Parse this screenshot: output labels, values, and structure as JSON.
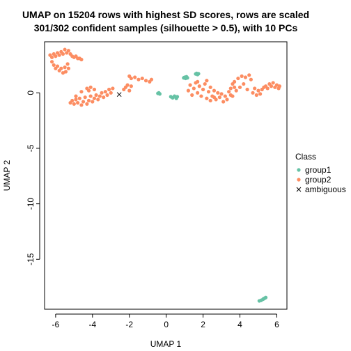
{
  "chart_data": {
    "type": "scatter",
    "title_line1": "UMAP on 15204 rows with highest SD scores, rows are scaled",
    "title_line2": "301/302 confident samples (silhouette > 0.5), with 10 PCs",
    "xlabel": "UMAP 1",
    "ylabel": "UMAP 2",
    "xlim": [
      -6.6,
      6.55
    ],
    "ylim": [
      -19.5,
      4.6
    ],
    "xticks": [
      -6,
      -4,
      -2,
      0,
      2,
      4,
      6
    ],
    "yticks": [
      0,
      -5,
      -10,
      -15
    ],
    "grid": false,
    "legend": {
      "title": "Class",
      "position": "right",
      "items": [
        {
          "label": "group1",
          "color": "#66C2A5",
          "symbol": "point"
        },
        {
          "label": "group2",
          "color": "#FC8D62",
          "symbol": "point"
        },
        {
          "label": "ambiguous",
          "color": "#000000",
          "symbol": "cross"
        }
      ]
    },
    "series": [
      {
        "name": "group1",
        "color": "#66C2A5",
        "points": [
          [
            -0.45,
            -0.05
          ],
          [
            -0.4,
            0.0
          ],
          [
            -0.35,
            -0.1
          ],
          [
            0.25,
            -0.35
          ],
          [
            0.35,
            -0.45
          ],
          [
            0.45,
            -0.3
          ],
          [
            0.55,
            -0.5
          ],
          [
            0.6,
            -0.35
          ],
          [
            0.95,
            1.35
          ],
          [
            1.0,
            1.4
          ],
          [
            1.05,
            1.3
          ],
          [
            1.1,
            1.45
          ],
          [
            1.15,
            1.35
          ],
          [
            1.6,
            1.7
          ],
          [
            1.65,
            1.75
          ],
          [
            1.7,
            1.65
          ],
          [
            1.75,
            1.72
          ],
          [
            5.05,
            -18.75
          ],
          [
            5.15,
            -18.7
          ],
          [
            5.25,
            -18.6
          ],
          [
            5.3,
            -18.55
          ],
          [
            5.35,
            -18.5
          ],
          [
            5.4,
            -18.45
          ]
        ]
      },
      {
        "name": "group2",
        "color": "#FC8D62",
        "points": [
          [
            -6.3,
            3.4
          ],
          [
            -6.2,
            3.2
          ],
          [
            -6.1,
            3.5
          ],
          [
            -6.0,
            3.3
          ],
          [
            -5.9,
            3.6
          ],
          [
            -5.8,
            3.4
          ],
          [
            -5.7,
            3.7
          ],
          [
            -5.6,
            3.5
          ],
          [
            -5.5,
            3.9
          ],
          [
            -5.4,
            3.6
          ],
          [
            -5.3,
            3.8
          ],
          [
            -5.2,
            3.5
          ],
          [
            -5.1,
            3.3
          ],
          [
            -5.0,
            3.2
          ],
          [
            -4.9,
            3.3
          ],
          [
            -4.8,
            3.1
          ],
          [
            -4.7,
            3.1
          ],
          [
            -4.6,
            3.0
          ],
          [
            -6.2,
            2.8
          ],
          [
            -6.1,
            2.5
          ],
          [
            -6.0,
            2.2
          ],
          [
            -5.9,
            2.4
          ],
          [
            -5.8,
            2.0
          ],
          [
            -5.7,
            2.2
          ],
          [
            -5.6,
            1.8
          ],
          [
            -5.5,
            2.3
          ],
          [
            -5.45,
            1.9
          ],
          [
            -5.35,
            2.6
          ],
          [
            -5.3,
            2.2
          ],
          [
            -5.2,
            -0.9
          ],
          [
            -5.1,
            -0.7
          ],
          [
            -5.0,
            -1.0
          ],
          [
            -4.9,
            -0.6
          ],
          [
            -4.8,
            -0.9
          ],
          [
            -4.7,
            -0.5
          ],
          [
            -4.6,
            -1.1
          ],
          [
            -4.5,
            -0.8
          ],
          [
            -4.4,
            -0.4
          ],
          [
            -4.3,
            -1.0
          ],
          [
            -4.2,
            -0.7
          ],
          [
            -4.1,
            -0.3
          ],
          [
            -4.0,
            -0.8
          ],
          [
            -3.9,
            -0.5
          ],
          [
            -3.8,
            -0.2
          ],
          [
            -3.7,
            -0.6
          ],
          [
            -3.6,
            -0.3
          ],
          [
            -3.5,
            0.0
          ],
          [
            -3.4,
            -0.4
          ],
          [
            -3.3,
            0.1
          ],
          [
            -3.2,
            -0.2
          ],
          [
            -3.1,
            0.3
          ],
          [
            -3.0,
            0.0
          ],
          [
            -2.9,
            0.4
          ],
          [
            -4.3,
            0.4
          ],
          [
            -4.1,
            0.5
          ],
          [
            -3.9,
            0.3
          ],
          [
            -4.2,
            0.2
          ],
          [
            -4.9,
            -0.3
          ],
          [
            -4.6,
            0.1
          ],
          [
            -2.3,
            0.3
          ],
          [
            -2.2,
            0.5
          ],
          [
            -2.1,
            0.7
          ],
          [
            -2.0,
            0.2
          ],
          [
            -1.9,
            0.6
          ],
          [
            -2.0,
            1.5
          ],
          [
            -1.9,
            1.3
          ],
          [
            -1.7,
            1.4
          ],
          [
            -1.5,
            1.2
          ],
          [
            -1.3,
            1.3
          ],
          [
            -1.1,
            1.1
          ],
          [
            -0.9,
            1.0
          ],
          [
            -0.8,
            1.2
          ],
          [
            1.2,
            0.2
          ],
          [
            1.3,
            0.7
          ],
          [
            1.4,
            -0.2
          ],
          [
            1.5,
            0.4
          ],
          [
            1.6,
            0.9
          ],
          [
            1.7,
            0.0
          ],
          [
            1.8,
            0.6
          ],
          [
            1.9,
            -0.3
          ],
          [
            2.0,
            0.3
          ],
          [
            2.1,
            0.8
          ],
          [
            2.2,
            -0.5
          ],
          [
            2.3,
            0.1
          ],
          [
            2.4,
            0.5
          ],
          [
            2.5,
            -0.3
          ],
          [
            2.6,
            0.2
          ],
          [
            2.7,
            -0.6
          ],
          [
            2.8,
            0.0
          ],
          [
            2.9,
            -0.4
          ],
          [
            3.0,
            -0.1
          ],
          [
            3.1,
            -0.8
          ],
          [
            3.2,
            -0.3
          ],
          [
            3.3,
            -0.6
          ],
          [
            3.4,
            0.1
          ],
          [
            3.5,
            0.4
          ],
          [
            3.6,
            0.8
          ],
          [
            3.7,
            1.0
          ],
          [
            3.8,
            0.2
          ],
          [
            3.9,
            1.3
          ],
          [
            4.0,
            0.5
          ],
          [
            4.1,
            1.5
          ],
          [
            4.2,
            0.8
          ],
          [
            4.3,
            1.4
          ],
          [
            4.4,
            0.3
          ],
          [
            4.5,
            1.6
          ],
          [
            4.6,
            1.2
          ],
          [
            4.7,
            0.0
          ],
          [
            4.8,
            0.4
          ],
          [
            4.9,
            -0.2
          ],
          [
            5.0,
            0.2
          ],
          [
            5.1,
            -0.1
          ],
          [
            5.2,
            0.3
          ],
          [
            5.3,
            0.5
          ],
          [
            5.4,
            0.6
          ],
          [
            5.5,
            0.4
          ],
          [
            5.6,
            0.8
          ],
          [
            5.7,
            0.6
          ],
          [
            5.8,
            0.9
          ],
          [
            5.9,
            0.5
          ],
          [
            6.0,
            0.7
          ],
          [
            6.1,
            0.4
          ],
          [
            6.15,
            0.6
          ],
          [
            3.6,
            -0.3
          ],
          [
            3.7,
            0.5
          ],
          [
            3.5,
            -0.2
          ],
          [
            2.4,
            -0.7
          ],
          [
            2.6,
            -0.4
          ],
          [
            1.7,
            1.0
          ],
          [
            2.2,
            1.1
          ]
        ]
      },
      {
        "name": "ambiguous",
        "color": "#000000",
        "points": [
          [
            -2.55,
            -0.15
          ]
        ]
      }
    ]
  }
}
